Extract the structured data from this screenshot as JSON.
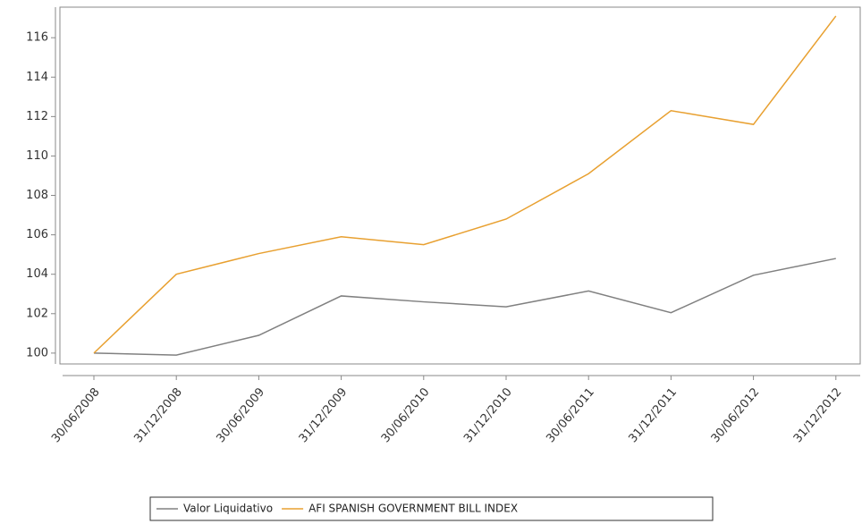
{
  "chart_data": {
    "type": "line",
    "categories": [
      "30/06/2008",
      "31/12/2008",
      "30/06/2009",
      "31/12/2009",
      "30/06/2010",
      "31/12/2010",
      "30/06/2011",
      "31/12/2011",
      "30/06/2012",
      "31/12/2012"
    ],
    "series": [
      {
        "name": "Valor Liquidativo",
        "color": "#808080",
        "values": [
          100.0,
          99.9,
          100.9,
          102.9,
          102.6,
          102.35,
          103.15,
          102.05,
          103.95,
          104.8
        ]
      },
      {
        "name": "AFI SPANISH GOVERNMENT BILL INDEX",
        "color": "#e8a030",
        "values": [
          100.0,
          104.0,
          105.05,
          105.9,
          105.5,
          106.8,
          109.1,
          112.3,
          111.6,
          117.1
        ]
      }
    ],
    "ylim": [
      99.45,
      117.55
    ],
    "yticks": [
      100,
      102,
      104,
      106,
      108,
      110,
      112,
      114,
      116
    ]
  }
}
